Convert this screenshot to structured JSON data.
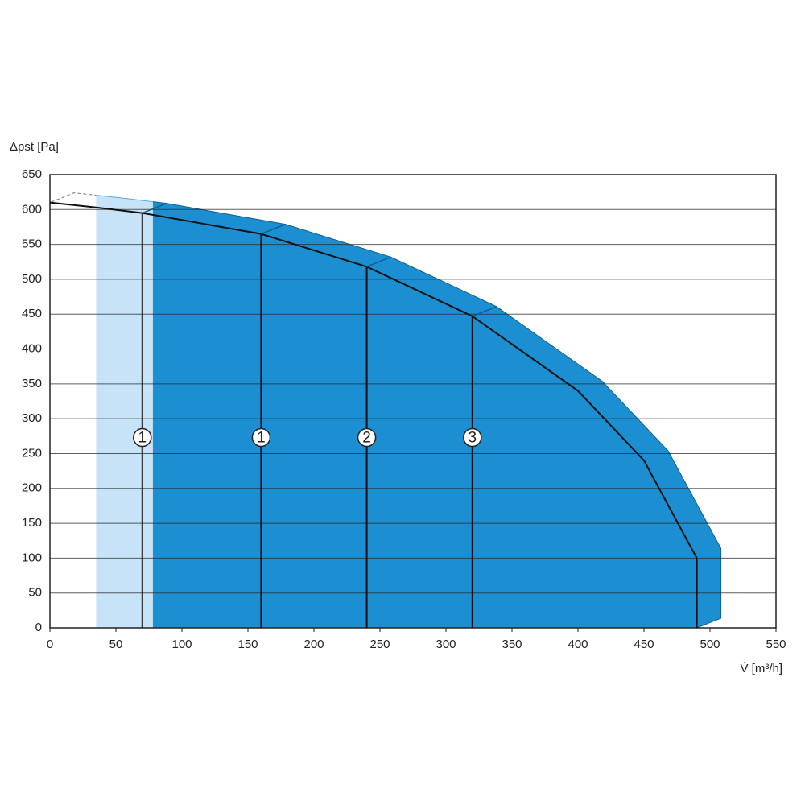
{
  "chart_data": {
    "type": "area",
    "x_label": "V̇ [m³/h]",
    "y_label": "Δpst [Pa]",
    "x": [
      0,
      35,
      70,
      160,
      240,
      320,
      400,
      450,
      490
    ],
    "values": [
      610,
      603,
      595,
      565,
      518,
      447,
      340,
      240,
      100
    ],
    "color": "#1b8fd1",
    "bands": [
      {
        "x": [
          35,
          78
        ],
        "color": "#c6e3f7"
      }
    ],
    "markers": [
      {
        "x": 70,
        "label": "1"
      },
      {
        "x": 160,
        "label": "1"
      },
      {
        "x": 240,
        "label": "2"
      },
      {
        "x": 320,
        "label": "3"
      }
    ],
    "xlim": [
      0,
      550
    ],
    "xticks": [
      0,
      50,
      100,
      150,
      200,
      250,
      300,
      350,
      400,
      450,
      500,
      550
    ],
    "ylim": [
      0,
      650
    ],
    "yticks": [
      0,
      50,
      100,
      150,
      200,
      250,
      300,
      350,
      400,
      450,
      500,
      550,
      600,
      650
    ],
    "grid": "y"
  }
}
